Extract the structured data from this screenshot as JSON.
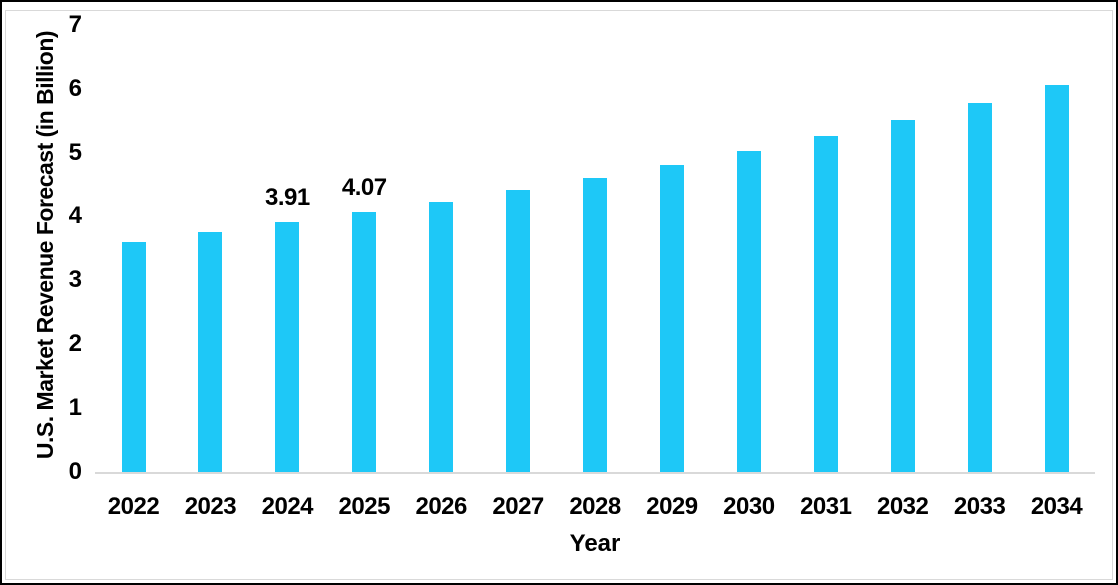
{
  "chart_data": {
    "type": "bar",
    "title": "",
    "xlabel": "Year",
    "ylabel": "U.S. Market Revenue Forecast (in Billion)",
    "categories": [
      "2022",
      "2023",
      "2024",
      "2025",
      "2026",
      "2027",
      "2028",
      "2029",
      "2030",
      "2031",
      "2032",
      "2033",
      "2034"
    ],
    "values": [
      3.6,
      3.76,
      3.91,
      4.07,
      4.23,
      4.41,
      4.6,
      4.8,
      5.02,
      5.26,
      5.51,
      5.77,
      6.06
    ],
    "annotations": [
      {
        "category": "2024",
        "text": "3.91"
      },
      {
        "category": "2025",
        "text": "4.07"
      }
    ],
    "yticks": [
      "0",
      "1",
      "2",
      "3",
      "4",
      "5",
      "6",
      "7"
    ],
    "ylim": [
      0,
      7
    ],
    "grid": false,
    "legend": null,
    "colors": {
      "bar": "#1EC8F7",
      "axis_line": "#D9D9D9",
      "chart_border": "#D9D9D9",
      "text": "#000000",
      "background": "#FFFFFF",
      "outer_border": "#000000"
    }
  }
}
